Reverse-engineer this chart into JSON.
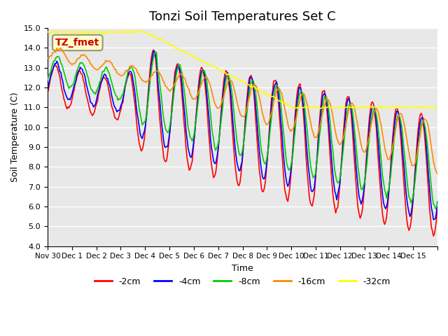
{
  "title": "Tonzi Soil Temperatures Set C",
  "xlabel": "Time",
  "ylabel": "Soil Temperature (C)",
  "ylim": [
    4.0,
    15.0
  ],
  "yticks": [
    4.0,
    5.0,
    6.0,
    7.0,
    8.0,
    9.0,
    10.0,
    11.0,
    12.0,
    13.0,
    14.0,
    15.0
  ],
  "xtick_labels": [
    "Nov 30",
    "Dec 1",
    "Dec 2",
    "Dec 3",
    "Dec 4",
    "Dec 5",
    "Dec 6",
    "Dec 7",
    "Dec 8",
    "Dec 9",
    "Dec 10",
    "Dec 11",
    "Dec 12",
    "Dec 13",
    "Dec 14",
    "Dec 15"
  ],
  "colors": {
    "-2cm": "#ff0000",
    "-4cm": "#0000ff",
    "-8cm": "#00cc00",
    "-16cm": "#ff8800",
    "-32cm": "#ffff00"
  },
  "annotation_label": "TZ_fmet",
  "annotation_color": "#cc0000",
  "annotation_bg": "#ffffcc",
  "plot_bg": "#e8e8e8",
  "title_fontsize": 13,
  "legend_fontsize": 9,
  "axis_fontsize": 9,
  "n_days": 16
}
